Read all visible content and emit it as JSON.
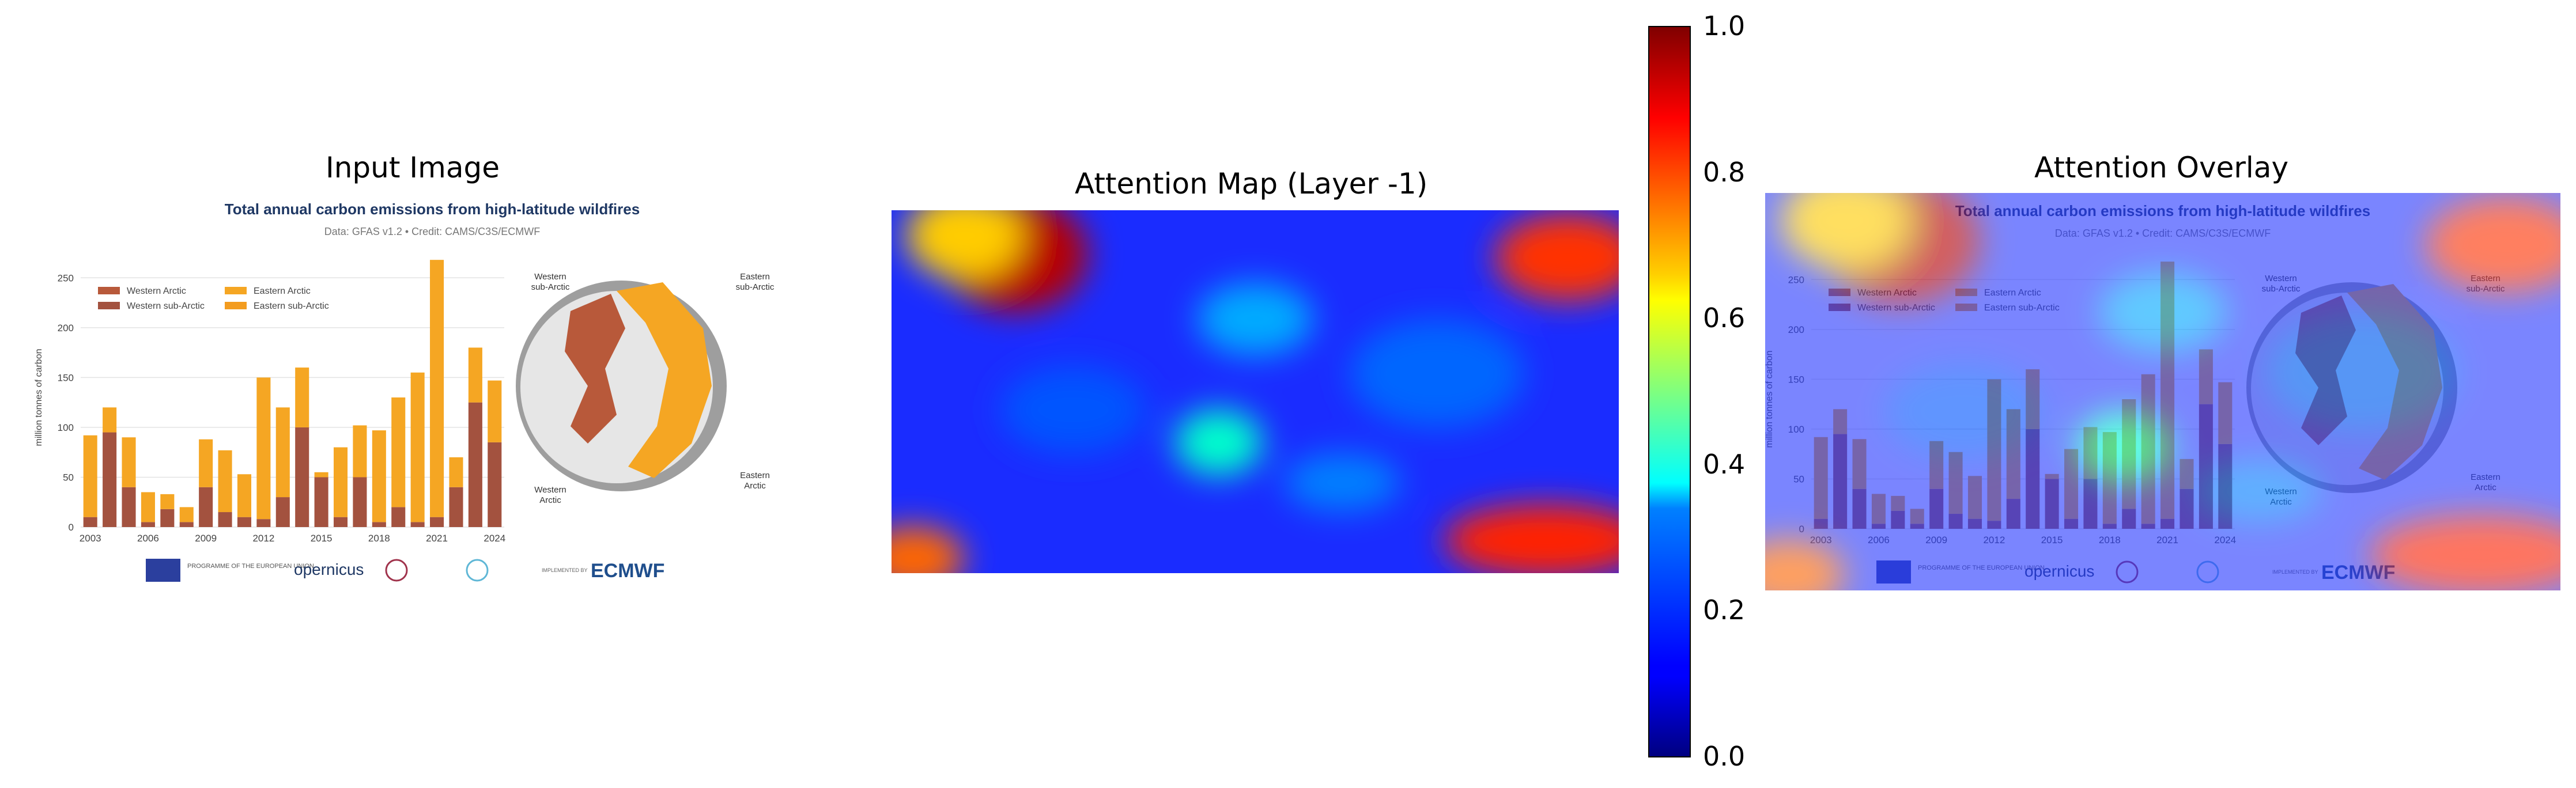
{
  "panels": {
    "input_title": "Input Image",
    "attention_title": "Attention Map (Layer -1)",
    "overlay_title": "Attention Overlay"
  },
  "colorbar": {
    "ticks": [
      "1.0",
      "0.8",
      "0.6",
      "0.4",
      "0.2",
      "0.0"
    ],
    "colormap": "jet",
    "range": [
      0.0,
      1.0
    ]
  },
  "chart_data": {
    "type": "bar",
    "title": "Total annual carbon emissions from high-latitude wildfires",
    "subtitle": "Data: GFAS v1.2 • Credit: CAMS/C3S/ECMWF",
    "ylabel": "million tonnes of carbon",
    "ylim": [
      0,
      260
    ],
    "yticks": [
      0,
      50,
      100,
      150,
      200,
      250
    ],
    "xtick_labels": [
      "2003",
      "2006",
      "2009",
      "2012",
      "2015",
      "2018",
      "2021",
      "2024"
    ],
    "categories": [
      "2003",
      "2004",
      "2005",
      "2006",
      "2007",
      "2008",
      "2009",
      "2010",
      "2011",
      "2012",
      "2013",
      "2014",
      "2015",
      "2016",
      "2017",
      "2018",
      "2019",
      "2020",
      "2021",
      "2022",
      "2023",
      "2024"
    ],
    "stacked": true,
    "legend": [
      "Western Arctic",
      "Eastern Arctic",
      "Western sub-Arctic",
      "Eastern sub-Arctic"
    ],
    "legend_position": "top-left",
    "colors": {
      "Western Arctic": "#b8593a",
      "Western sub-Arctic": "#a3523f",
      "Eastern Arctic": "#f5a623",
      "Eastern sub-Arctic": "#f39c1f"
    },
    "series": [
      {
        "name": "Western Arctic+sub-Arctic",
        "color": "#a3523f",
        "values": [
          10,
          95,
          40,
          5,
          18,
          5,
          40,
          15,
          10,
          8,
          30,
          100,
          50,
          10,
          50,
          5,
          20,
          5,
          10,
          40,
          125,
          85
        ]
      },
      {
        "name": "Eastern Arctic+sub-Arctic",
        "color": "#f5a623",
        "values": [
          82,
          25,
          50,
          30,
          15,
          15,
          48,
          62,
          43,
          142,
          90,
          60,
          5,
          70,
          52,
          92,
          110,
          150,
          258,
          30,
          55,
          62
        ]
      }
    ],
    "map_labels": [
      "Western sub-Arctic",
      "Eastern sub-Arctic",
      "Western Arctic",
      "Eastern Arctic"
    ],
    "logos": [
      "PROGRAMME OF THE EUROPEAN UNION",
      "opernicus",
      "ECMWF",
      "IMPLEMENTED BY"
    ]
  }
}
